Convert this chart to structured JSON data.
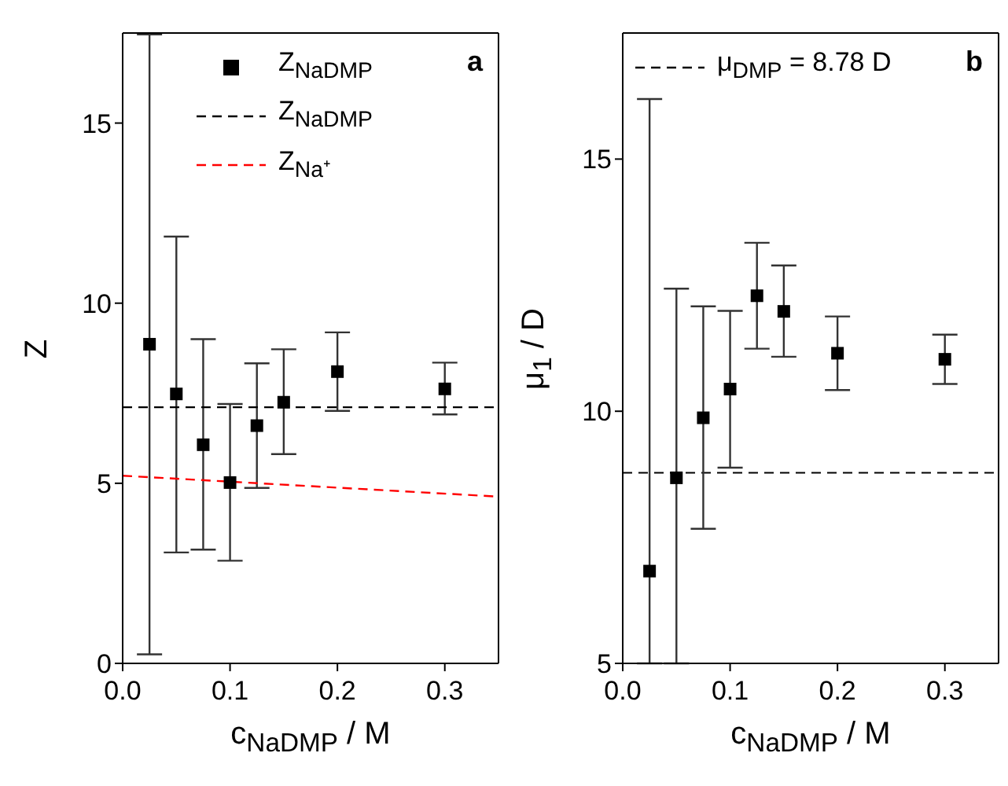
{
  "chart_data": [
    {
      "type": "scatter",
      "xlabel": "c$_{NaDMP}$ / M",
      "ylabel": "Z",
      "xlim": [
        0,
        0.35
      ],
      "xticks": [
        {
          "value": 0,
          "label": "0.0"
        },
        0.1,
        0.2,
        0.3
      ],
      "ylim": [
        0,
        17.5
      ],
      "yticks": [
        0,
        5,
        10,
        15
      ],
      "marker": "square",
      "legend": "top",
      "annotations": [
        "a"
      ],
      "series": [
        {
          "name": "Z$_{NaDMP}$",
          "color": "#000000",
          "x": [
            0.025,
            0.05,
            0.075,
            0.1,
            0.125,
            0.15,
            0.2,
            0.3
          ],
          "values": [
            8.86,
            7.48,
            6.07,
            5.02,
            6.6,
            7.25,
            8.1,
            7.62
          ],
          "errors": [
            [
              0.25,
              17.46
            ],
            [
              3.08,
              11.85
            ],
            [
              3.16,
              9.0
            ],
            [
              2.85,
              7.2
            ],
            [
              4.87,
              8.33
            ],
            [
              5.81,
              8.72
            ],
            [
              7.01,
              9.19
            ],
            [
              6.91,
              8.35
            ]
          ]
        },
        {
          "name": "Z$_{NaDMP}$",
          "type": "line",
          "color": "#000000",
          "line_style": "dashed",
          "marker": "none",
          "x": [
            0,
            0.35
          ],
          "values": [
            7.11,
            7.11
          ]
        },
        {
          "name": "Z$_{Na⁺}$",
          "type": "line",
          "color": "#ff0000",
          "line_style": "dashed",
          "marker": "none",
          "x": [
            0,
            0.35
          ],
          "values": [
            5.21,
            4.63
          ]
        }
      ]
    },
    {
      "type": "scatter",
      "xlabel": "c$_{NaDMP}$ / M",
      "ylabel": "μ$_{1}$ / D",
      "xlim": [
        0,
        0.35
      ],
      "xticks": [
        {
          "value": 0,
          "label": "0.0"
        },
        0.1,
        0.2,
        0.3
      ],
      "ylim": [
        5,
        17.5
      ],
      "yticks": [
        5,
        10,
        15
      ],
      "marker": "square",
      "legend": "top left",
      "annotations": [
        "b"
      ],
      "ref_lines": [
        {
          "axis": "y",
          "value": 8.78,
          "label": "μ$_{DMP}$ = 8.78 D",
          "color": "#000000",
          "line_style": "dashed"
        }
      ],
      "series": [
        {
          "color": "#000000",
          "x": [
            0.025,
            0.05,
            0.075,
            0.1,
            0.125,
            0.15,
            0.2,
            0.3
          ],
          "values": [
            6.83,
            8.68,
            9.87,
            10.44,
            12.29,
            11.98,
            11.15,
            11.03
          ],
          "errors": [
            [
              5,
              16.19
            ],
            [
              5,
              12.43
            ],
            [
              7.67,
              12.08
            ],
            [
              8.88,
              11.99
            ],
            [
              11.24,
              13.34
            ],
            [
              11.08,
              12.89
            ],
            [
              10.42,
              11.88
            ],
            [
              10.54,
              11.52
            ]
          ]
        }
      ]
    }
  ]
}
